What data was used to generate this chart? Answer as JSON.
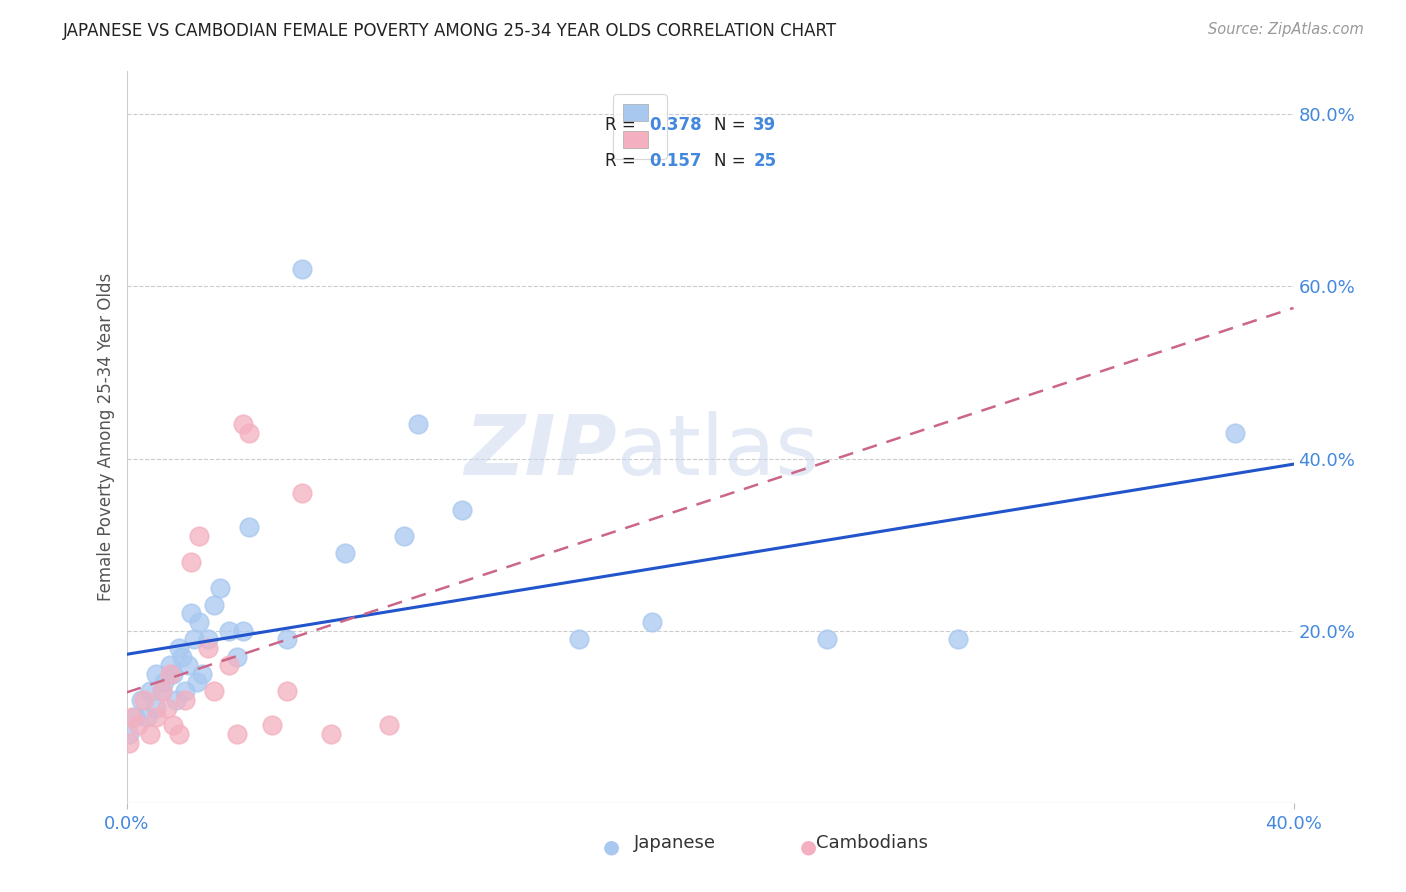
{
  "title": "JAPANESE VS CAMBODIAN FEMALE POVERTY AMONG 25-34 YEAR OLDS CORRELATION CHART",
  "source": "Source: ZipAtlas.com",
  "ylabel": "Female Poverty Among 25-34 Year Olds",
  "xlim": [
    0.0,
    0.4
  ],
  "ylim": [
    0.0,
    0.85
  ],
  "yticks_right": [
    0.0,
    0.2,
    0.4,
    0.6,
    0.8
  ],
  "yticklabels_right": [
    "",
    "20.0%",
    "40.0%",
    "60.0%",
    "80.0%"
  ],
  "grid_color": "#cccccc",
  "background_color": "#ffffff",
  "japanese_color": "#a8c8f0",
  "cambodian_color": "#f4b0c0",
  "trend_japanese_color": "#2255cc",
  "trend_cambodian_color": "#cc6688",
  "watermark_zip": "ZIP",
  "watermark_atlas": "atlas",
  "title_color": "#222222",
  "axis_label_color": "#555555",
  "right_axis_color": "#4488dd",
  "bottom_axis_color": "#4488dd",
  "japanese_x": [
    0.001,
    0.003,
    0.005,
    0.007,
    0.008,
    0.01,
    0.01,
    0.012,
    0.013,
    0.015,
    0.016,
    0.017,
    0.018,
    0.019,
    0.02,
    0.021,
    0.022,
    0.023,
    0.024,
    0.025,
    0.026,
    0.028,
    0.03,
    0.032,
    0.035,
    0.038,
    0.04,
    0.042,
    0.055,
    0.06,
    0.075,
    0.095,
    0.1,
    0.115,
    0.155,
    0.18,
    0.24,
    0.285,
    0.38
  ],
  "japanese_y": [
    0.08,
    0.1,
    0.12,
    0.1,
    0.13,
    0.11,
    0.15,
    0.13,
    0.14,
    0.16,
    0.15,
    0.12,
    0.18,
    0.17,
    0.13,
    0.16,
    0.22,
    0.19,
    0.14,
    0.21,
    0.15,
    0.19,
    0.23,
    0.25,
    0.2,
    0.17,
    0.2,
    0.32,
    0.19,
    0.62,
    0.29,
    0.31,
    0.44,
    0.34,
    0.19,
    0.21,
    0.19,
    0.19,
    0.43
  ],
  "cambodian_x": [
    0.001,
    0.002,
    0.004,
    0.006,
    0.008,
    0.01,
    0.012,
    0.014,
    0.015,
    0.016,
    0.018,
    0.02,
    0.022,
    0.025,
    0.028,
    0.03,
    0.035,
    0.038,
    0.04,
    0.042,
    0.05,
    0.055,
    0.06,
    0.07,
    0.09
  ],
  "cambodian_y": [
    0.07,
    0.1,
    0.09,
    0.12,
    0.08,
    0.1,
    0.13,
    0.11,
    0.15,
    0.09,
    0.08,
    0.12,
    0.28,
    0.31,
    0.18,
    0.13,
    0.16,
    0.08,
    0.44,
    0.43,
    0.09,
    0.13,
    0.36,
    0.08,
    0.09
  ]
}
